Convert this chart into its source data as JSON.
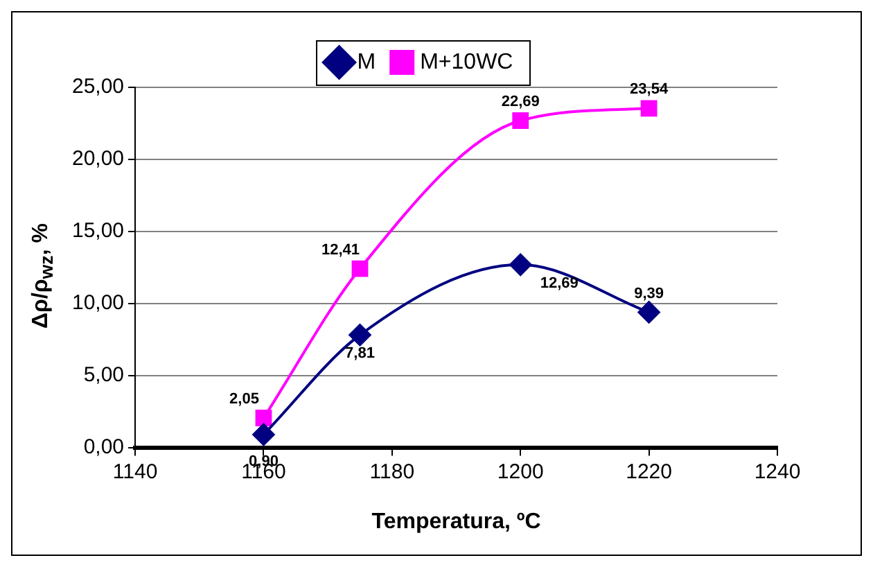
{
  "chart_data": {
    "type": "line",
    "xlabel": "Temperatura, ºC",
    "ylabel": "Δρ/ρ$_{wz}$, %",
    "x": [
      1160,
      1175,
      1200,
      1220
    ],
    "series": [
      {
        "name": "M",
        "color": "#000080",
        "marker": "diamond",
        "values": [
          0.9,
          7.81,
          12.69,
          9.39
        ],
        "value_labels": [
          "0,90",
          "7,81",
          "12,69",
          "9,39"
        ]
      },
      {
        "name": "M+10WC",
        "color": "#ff00ff",
        "marker": "square",
        "values": [
          2.05,
          12.41,
          22.69,
          23.54
        ],
        "value_labels": [
          "2,05",
          "12,41",
          "22,69",
          "23,54"
        ]
      }
    ],
    "xlim": [
      1140,
      1240
    ],
    "xticks": [
      1140,
      1160,
      1180,
      1200,
      1220,
      1240
    ],
    "ylim": [
      0,
      25
    ],
    "yticks": [
      {
        "value": 0,
        "label": "0,00"
      },
      {
        "value": 5,
        "label": "5,00"
      },
      {
        "value": 10,
        "label": "10,00"
      },
      {
        "value": 15,
        "label": "15,00"
      },
      {
        "value": 20,
        "label": "20,00"
      },
      {
        "value": 25,
        "label": "25,00"
      }
    ],
    "grid": "y",
    "legend": "top",
    "line_style": "solid"
  }
}
